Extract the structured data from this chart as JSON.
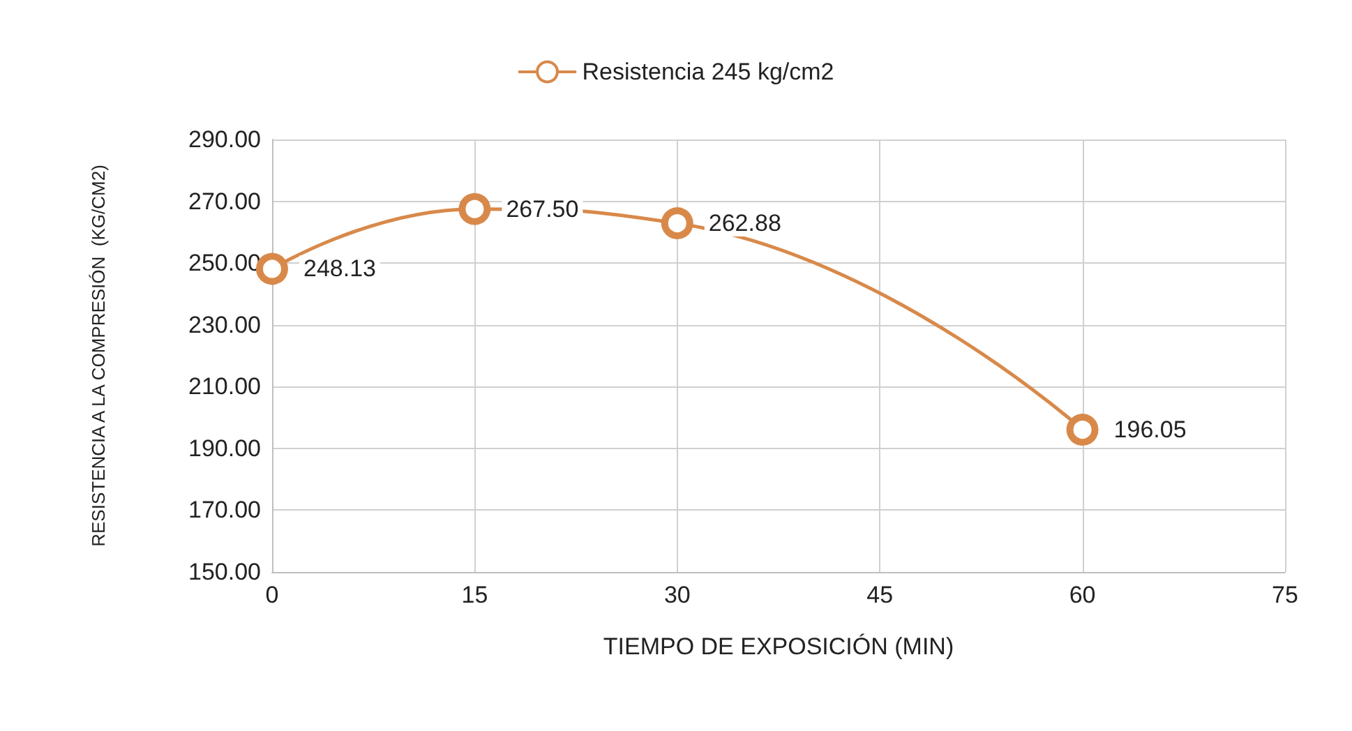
{
  "chart_data": {
    "type": "line",
    "xlabel": "TIEMPO DE EXPOSICIÓN (MIN)",
    "ylabel": "RESISTENCIA A LA COMPRESIÓN  (KG/CM2)",
    "x": [
      0,
      15,
      30,
      60
    ],
    "series": [
      {
        "name": "Resistencia 245 kg/cm2",
        "color": "#d8894a",
        "values": [
          248.13,
          267.5,
          262.88,
          196.05
        ],
        "value_labels": [
          "248.13",
          "267.50",
          "262.88",
          "196.05"
        ]
      }
    ],
    "xlim": [
      0,
      75
    ],
    "xticks": [
      0,
      15,
      30,
      45,
      60,
      75
    ],
    "ylim": [
      150,
      290
    ],
    "yticks": [
      {
        "value": 150,
        "label": "150.00"
      },
      {
        "value": 170,
        "label": "170.00"
      },
      {
        "value": 190,
        "label": "190.00"
      },
      {
        "value": 210,
        "label": "210.00"
      },
      {
        "value": 230,
        "label": "230.00"
      },
      {
        "value": 250,
        "label": "250.00"
      },
      {
        "value": 270,
        "label": "270.00"
      },
      {
        "value": 290,
        "label": "290.00"
      }
    ],
    "grid": true,
    "legend": "top",
    "marker": "circle",
    "line_style": "solid"
  }
}
